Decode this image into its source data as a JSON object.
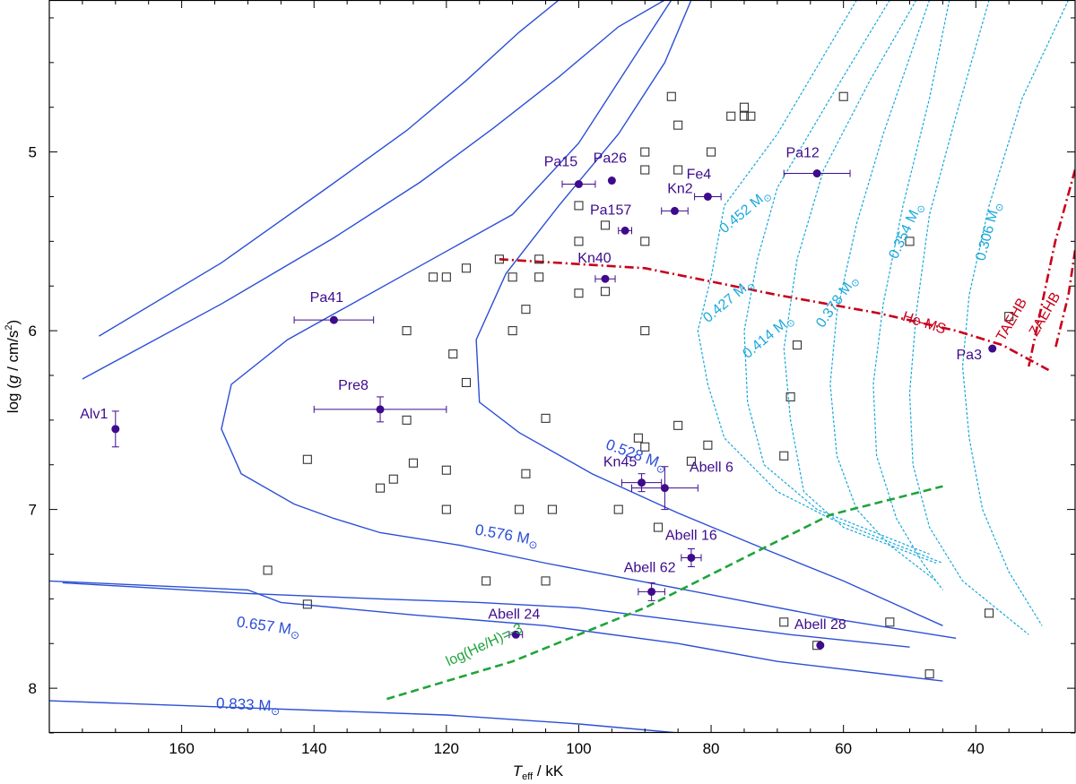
{
  "chart_data": {
    "type": "scatter",
    "xlabel": "T_eff / kK",
    "xlabel_main": "T",
    "xlabel_sub": "eff",
    "xlabel_unit": " / kK",
    "ylabel": "log (g / cm/s^2)",
    "ylabel_pre": "log (",
    "ylabel_g": "g",
    "ylabel_unit": " / cm/s",
    "ylabel_sup": "2",
    "ylabel_post": ")",
    "xlim": [
      180,
      25
    ],
    "ylim": [
      8.25,
      4.15
    ],
    "x_ticks": [
      160,
      140,
      120,
      100,
      80,
      60,
      40
    ],
    "y_ticks": [
      5,
      6,
      7,
      8
    ],
    "colors": {
      "track": "#2b4fd6",
      "he_track": "#19a8dc",
      "star": "#3d0b8c",
      "he_ms": "#c8001a",
      "helium_line": "#1fa43a",
      "comparison": "#333333"
    },
    "mass_tracks": [
      {
        "label": "0.528",
        "unit": "M",
        "points": [
          [
            172.5,
            6.03
          ],
          [
            154,
            5.62
          ],
          [
            138,
            5.2
          ],
          [
            126,
            4.88
          ],
          [
            117,
            4.6
          ],
          [
            109,
            4.33
          ],
          [
            103,
            4.15
          ]
        ]
      },
      {
        "label": "0.528",
        "unit": "M",
        "points": [
          [
            175,
            6.27
          ],
          [
            154,
            5.85
          ],
          [
            137,
            5.48
          ],
          [
            124,
            5.17
          ],
          [
            113,
            4.87
          ],
          [
            103,
            4.58
          ],
          [
            94,
            4.3
          ],
          [
            87,
            4.15
          ]
        ]
      },
      {
        "label": "0.528",
        "unit": "M",
        "points": [
          [
            86,
            4.15
          ],
          [
            93,
            4.55
          ],
          [
            100,
            4.95
          ],
          [
            110,
            5.35
          ],
          [
            127,
            5.7
          ],
          [
            144,
            6.05
          ],
          [
            152.5,
            6.3
          ],
          [
            154,
            6.55
          ],
          [
            151,
            6.8
          ],
          [
            143,
            6.97
          ],
          [
            137,
            7.05
          ],
          [
            130,
            7.13
          ],
          [
            118,
            7.2
          ],
          [
            105,
            7.3
          ],
          [
            88,
            7.42
          ],
          [
            60,
            7.62
          ],
          [
            43,
            7.72
          ]
        ]
      },
      {
        "label": "0.528 M",
        "unit": "M",
        "labelAt": [
          91.5,
          6.72
        ],
        "labelAngle": 20,
        "points": [
          [
            83,
            4.15
          ],
          [
            87,
            4.5
          ],
          [
            94,
            4.9
          ],
          [
            103,
            5.3
          ],
          [
            111,
            5.68
          ],
          [
            115.5,
            6.05
          ],
          [
            115,
            6.4
          ],
          [
            109,
            6.57
          ],
          [
            98,
            6.8
          ],
          [
            85,
            7.02
          ],
          [
            72,
            7.22
          ],
          [
            60,
            7.4
          ],
          [
            45,
            7.65
          ]
        ]
      },
      {
        "label": "0.576 M",
        "unit": "M",
        "labelAt": [
          111,
          7.17
        ],
        "labelAngle": 10,
        "points": [
          [
            178,
            7.41
          ],
          [
            150,
            7.47
          ],
          [
            130,
            7.5
          ],
          [
            115,
            7.52
          ],
          [
            100,
            7.55
          ],
          [
            85,
            7.62
          ],
          [
            68,
            7.7
          ],
          [
            50,
            7.77
          ]
        ]
      },
      {
        "label": "0.657 M",
        "unit": "M",
        "labelAt": [
          147,
          7.68
        ],
        "labelAngle": 8,
        "points": [
          [
            180,
            7.4
          ],
          [
            150,
            7.45
          ],
          [
            145,
            7.52
          ],
          [
            125,
            7.59
          ],
          [
            105,
            7.65
          ],
          [
            85,
            7.75
          ],
          [
            70,
            7.85
          ],
          [
            45,
            7.96
          ]
        ]
      },
      {
        "label": "0.833 M",
        "unit": "M",
        "labelAt": [
          150,
          8.12
        ],
        "labelAngle": 3,
        "points": [
          [
            180,
            8.07
          ],
          [
            150,
            8.11
          ],
          [
            120,
            8.15
          ],
          [
            100,
            8.2
          ],
          [
            85,
            8.25
          ]
        ]
      }
    ],
    "he_tracks": [
      {
        "label": "0.452 M",
        "labelAt": [
          74.5,
          5.35
        ],
        "labelAngle": -40,
        "points": [
          [
            58,
            4.15
          ],
          [
            70,
            4.9
          ],
          [
            78,
            5.3
          ],
          [
            80,
            5.7
          ],
          [
            82,
            6.0
          ],
          [
            80.5,
            6.3
          ],
          [
            78,
            6.6
          ],
          [
            70,
            6.9
          ],
          [
            62,
            7.05
          ],
          [
            45,
            7.3
          ]
        ]
      },
      {
        "label": "0.427 M",
        "labelAt": [
          77,
          5.85
        ],
        "labelAngle": -40,
        "points": [
          [
            53,
            4.15
          ],
          [
            62,
            4.7
          ],
          [
            70,
            5.2
          ],
          [
            73,
            5.6
          ],
          [
            75,
            6.0
          ],
          [
            74.5,
            6.4
          ],
          [
            72,
            6.75
          ],
          [
            64,
            7.0
          ],
          [
            47,
            7.25
          ]
        ]
      },
      {
        "label": "0.414 M",
        "labelAt": [
          71,
          6.05
        ],
        "labelAngle": -40,
        "points": [
          [
            49,
            4.15
          ],
          [
            56,
            4.6
          ],
          [
            63,
            5.1
          ],
          [
            67,
            5.6
          ],
          [
            69,
            6.1
          ],
          [
            68,
            6.5
          ],
          [
            66,
            6.9
          ],
          [
            60,
            7.1
          ],
          [
            46,
            7.3
          ]
        ]
      },
      {
        "label": "0.378 M",
        "labelAt": [
          60.5,
          5.85
        ],
        "labelAngle": -55,
        "points": [
          [
            47,
            4.15
          ],
          [
            54,
            4.9
          ],
          [
            58,
            5.4
          ],
          [
            61,
            5.9
          ],
          [
            62,
            6.3
          ],
          [
            61,
            6.7
          ],
          [
            58,
            7.0
          ],
          [
            53,
            7.2
          ],
          [
            46,
            7.4
          ]
        ]
      },
      {
        "label": "0.354 M",
        "labelAt": [
          50,
          5.45
        ],
        "labelAngle": -65,
        "points": [
          [
            44,
            4.15
          ],
          [
            47,
            4.7
          ],
          [
            51,
            5.3
          ],
          [
            54,
            5.85
          ],
          [
            55.5,
            6.3
          ],
          [
            55,
            6.7
          ],
          [
            52,
            7.05
          ],
          [
            48,
            7.3
          ],
          [
            45,
            7.45
          ]
        ]
      },
      {
        "label": "0.306 M",
        "labelAt": [
          37.5,
          5.45
        ],
        "labelAngle": -75,
        "points": [
          [
            26,
            4.15
          ],
          [
            33,
            4.7
          ],
          [
            38,
            5.3
          ],
          [
            41,
            5.8
          ],
          [
            42,
            6.2
          ],
          [
            41,
            6.6
          ],
          [
            39,
            7.0
          ],
          [
            35,
            7.35
          ],
          [
            30,
            7.65
          ]
        ]
      },
      {
        "label": "",
        "points": [
          [
            38,
            4.15
          ],
          [
            43,
            4.8
          ],
          [
            47,
            5.35
          ],
          [
            49,
            5.9
          ],
          [
            50,
            6.35
          ],
          [
            49.5,
            6.75
          ],
          [
            47,
            7.1
          ],
          [
            42,
            7.4
          ],
          [
            32,
            7.7
          ]
        ]
      }
    ],
    "he_ms": {
      "label": "He-MS",
      "labelAt": [
        48,
        5.98
      ],
      "labelAngle": 18,
      "points": [
        [
          112,
          5.6
        ],
        [
          90,
          5.65
        ],
        [
          70,
          5.8
        ],
        [
          55,
          5.9
        ],
        [
          43,
          6.0
        ],
        [
          36,
          6.08
        ],
        [
          29,
          6.22
        ]
      ]
    },
    "taehb": {
      "label": "TAEHB",
      "labelAt": [
        34,
        5.95
      ],
      "labelAngle": -60,
      "points": [
        [
          25,
          5.1
        ],
        [
          28,
          5.5
        ],
        [
          30,
          5.85
        ],
        [
          32,
          6.2
        ]
      ]
    },
    "zaehb": {
      "label": "ZAEHB",
      "labelAt": [
        29,
        5.92
      ],
      "labelAngle": -60,
      "points": [
        [
          25,
          5.55
        ],
        [
          26,
          5.8
        ],
        [
          28,
          6.1
        ]
      ]
    },
    "helium_line": {
      "label": "log(He/H)=-3",
      "labelAt": [
        114,
        7.78
      ],
      "labelAngle": -25,
      "points": [
        [
          129,
          8.06
        ],
        [
          110,
          7.85
        ],
        [
          90,
          7.55
        ],
        [
          75,
          7.27
        ],
        [
          62,
          7.03
        ],
        [
          45,
          6.87
        ]
      ]
    },
    "stars": [
      {
        "name": "Alv1",
        "x": 170,
        "y": 6.55,
        "xerr": 0,
        "yerr": 0.1,
        "labelDx": -24,
        "labelDy": -12
      },
      {
        "name": "Pa41",
        "x": 137,
        "y": 5.94,
        "xerr": 6,
        "yerr": 0,
        "labelDx": -8,
        "labelDy": -20
      },
      {
        "name": "Pre8",
        "x": 130,
        "y": 6.44,
        "xerr": 10,
        "yerr": 0.07,
        "labelDx": -30,
        "labelDy": -22
      },
      {
        "name": "Pa15",
        "x": 100,
        "y": 5.18,
        "xerr": 2.5,
        "yerr": 0,
        "labelDx": -20,
        "labelDy": -20
      },
      {
        "name": "Pa26",
        "x": 95,
        "y": 5.16,
        "xerr": 0,
        "yerr": 0,
        "labelDx": -2,
        "labelDy": -20
      },
      {
        "name": "Pa157",
        "x": 93,
        "y": 5.44,
        "xerr": 1,
        "yerr": 0,
        "labelDx": -16,
        "labelDy": -18
      },
      {
        "name": "Kn40",
        "x": 96,
        "y": 5.71,
        "xerr": 1.5,
        "yerr": 0,
        "labelDx": -12,
        "labelDy": -18
      },
      {
        "name": "Kn2",
        "x": 85.5,
        "y": 5.33,
        "xerr": 2,
        "yerr": 0,
        "labelDx": 6,
        "labelDy": -20
      },
      {
        "name": "Fe4",
        "x": 80.5,
        "y": 5.25,
        "xerr": 2,
        "yerr": 0,
        "labelDx": -10,
        "labelDy": -20
      },
      {
        "name": "Pa12",
        "x": 64,
        "y": 5.12,
        "xerr": 5,
        "yerr": 0,
        "labelDx": -16,
        "labelDy": -18
      },
      {
        "name": "Pa3",
        "x": 37.5,
        "y": 6.1,
        "xerr": 0,
        "yerr": 0,
        "labelDx": -26,
        "labelDy": 12
      },
      {
        "name": "Kn45",
        "x": 90.5,
        "y": 6.85,
        "xerr": 3,
        "yerr": 0.05,
        "labelDx": -24,
        "labelDy": -18
      },
      {
        "name": "Abell 6",
        "x": 87,
        "y": 6.88,
        "xerr": 5,
        "yerr": 0.12,
        "labelDx": 52,
        "labelDy": -18
      },
      {
        "name": "Abell 16",
        "x": 83,
        "y": 7.27,
        "xerr": 1.5,
        "yerr": 0.05,
        "labelDx": 0,
        "labelDy": -20
      },
      {
        "name": "Abell 62",
        "x": 89,
        "y": 7.46,
        "xerr": 2,
        "yerr": 0.05,
        "labelDx": -2,
        "labelDy": -22
      },
      {
        "name": "Abell 24",
        "x": 109.5,
        "y": 7.7,
        "xerr": 1,
        "yerr": 0,
        "labelDx": -2,
        "labelDy": -18
      },
      {
        "name": "Abell 28",
        "x": 63.5,
        "y": 7.76,
        "xerr": 0,
        "yerr": 0,
        "labelDx": 0,
        "labelDy": -18
      }
    ],
    "comparison_points": [
      [
        147,
        7.34
      ],
      [
        141,
        7.53
      ],
      [
        141,
        6.72
      ],
      [
        130,
        6.88
      ],
      [
        128,
        6.83
      ],
      [
        126,
        6.0
      ],
      [
        126,
        6.5
      ],
      [
        125,
        6.74
      ],
      [
        122,
        5.7
      ],
      [
        120,
        5.7
      ],
      [
        120,
        6.78
      ],
      [
        120,
        7.0
      ],
      [
        119,
        6.13
      ],
      [
        117,
        5.65
      ],
      [
        117,
        6.29
      ],
      [
        114,
        7.4
      ],
      [
        112,
        5.6
      ],
      [
        110,
        5.7
      ],
      [
        110,
        6.0
      ],
      [
        109,
        7.0
      ],
      [
        108,
        5.88
      ],
      [
        108,
        6.8
      ],
      [
        106,
        5.6
      ],
      [
        106,
        5.7
      ],
      [
        105,
        6.49
      ],
      [
        105,
        7.4
      ],
      [
        104,
        7.0
      ],
      [
        100,
        5.3
      ],
      [
        100,
        5.5
      ],
      [
        100,
        5.79
      ],
      [
        96,
        5.41
      ],
      [
        96,
        5.78
      ],
      [
        94,
        7.0
      ],
      [
        91,
        6.6
      ],
      [
        90,
        5.0
      ],
      [
        90,
        5.1
      ],
      [
        90,
        5.5
      ],
      [
        90,
        6.0
      ],
      [
        90,
        6.65
      ],
      [
        88,
        7.1
      ],
      [
        86,
        4.69
      ],
      [
        85,
        4.85
      ],
      [
        85,
        5.1
      ],
      [
        85,
        6.53
      ],
      [
        83,
        6.73
      ],
      [
        80,
        5.0
      ],
      [
        80.5,
        6.64
      ],
      [
        75,
        4.75
      ],
      [
        75,
        4.8
      ],
      [
        77,
        4.8
      ],
      [
        74,
        4.8
      ],
      [
        69,
        6.7
      ],
      [
        69,
        7.63
      ],
      [
        68,
        6.37
      ],
      [
        67,
        6.08
      ],
      [
        64,
        7.76
      ],
      [
        60,
        4.69
      ],
      [
        53,
        7.63
      ],
      [
        50,
        5.5
      ],
      [
        47,
        7.92
      ],
      [
        38,
        7.58
      ],
      [
        35,
        5.92
      ]
    ],
    "mass_unit_symbol": "⊙"
  }
}
